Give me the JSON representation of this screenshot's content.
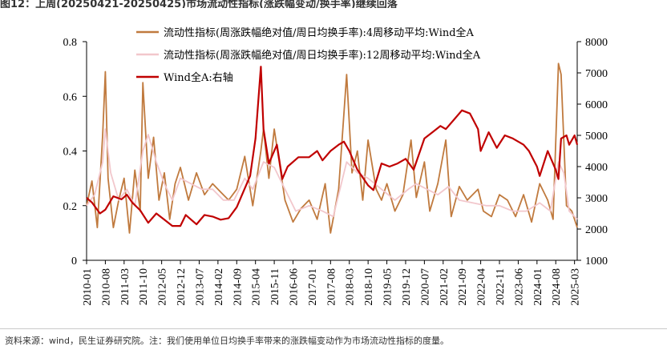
{
  "figure": {
    "title": "图12：上周(20250421-20250425)市场流动性指标(涨跌幅变动/换手率)继续回落",
    "source": "资料来源：wind，民生证券研究院。注：我们使用单位日均换手率带来的涨跌幅变动作为市场流动性指标的度量。"
  },
  "chart_data": {
    "type": "line",
    "legend_position": "top-center",
    "x_ticks": [
      "2010-01",
      "2010-08",
      "2011-03",
      "2011-10",
      "2012-05",
      "2012-12",
      "2013-07",
      "2014-02",
      "2014-09",
      "2015-04",
      "2015-11",
      "2016-06",
      "2017-01",
      "2017-08",
      "2018-03",
      "2018-10",
      "2019-05",
      "2019-12",
      "2020-07",
      "2021-02",
      "2021-09",
      "2022-04",
      "2022-11",
      "2023-06",
      "2024-01",
      "2024-08",
      "2025-03"
    ],
    "x_range": [
      "2010-01",
      "2025-04"
    ],
    "y_left": {
      "range": [
        0,
        0.8
      ],
      "ticks": [
        "0",
        "0.2",
        "0.4",
        "0.6",
        "0.8"
      ]
    },
    "y_right": {
      "range": [
        1000,
        8000
      ],
      "ticks": [
        "1000",
        "2000",
        "3000",
        "4000",
        "5000",
        "6000",
        "7000",
        "8000"
      ]
    },
    "series": [
      {
        "name": "流动性指标(周涨跌幅绝对值/周日均换手率):4周移动平均:Wind全A",
        "axis": "left",
        "color": "#c07a3e",
        "points": [
          [
            "2010-01",
            0.2
          ],
          [
            "2010-03",
            0.29
          ],
          [
            "2010-05",
            0.12
          ],
          [
            "2010-07",
            0.46
          ],
          [
            "2010-08",
            0.69
          ],
          [
            "2010-09",
            0.3
          ],
          [
            "2010-11",
            0.12
          ],
          [
            "2011-01",
            0.22
          ],
          [
            "2011-03",
            0.3
          ],
          [
            "2011-05",
            0.1
          ],
          [
            "2011-07",
            0.33
          ],
          [
            "2011-09",
            0.18
          ],
          [
            "2011-10",
            0.65
          ],
          [
            "2011-12",
            0.3
          ],
          [
            "2012-02",
            0.45
          ],
          [
            "2012-04",
            0.22
          ],
          [
            "2012-06",
            0.32
          ],
          [
            "2012-08",
            0.15
          ],
          [
            "2012-10",
            0.28
          ],
          [
            "2012-12",
            0.34
          ],
          [
            "2013-03",
            0.22
          ],
          [
            "2013-06",
            0.32
          ],
          [
            "2013-09",
            0.24
          ],
          [
            "2013-12",
            0.28
          ],
          [
            "2014-03",
            0.25
          ],
          [
            "2014-06",
            0.22
          ],
          [
            "2014-09",
            0.26
          ],
          [
            "2014-12",
            0.38
          ],
          [
            "2015-03",
            0.2
          ],
          [
            "2015-06",
            0.4
          ],
          [
            "2015-07",
            0.48
          ],
          [
            "2015-09",
            0.3
          ],
          [
            "2015-11",
            0.48
          ],
          [
            "2016-01",
            0.35
          ],
          [
            "2016-03",
            0.22
          ],
          [
            "2016-06",
            0.14
          ],
          [
            "2016-09",
            0.19
          ],
          [
            "2016-12",
            0.22
          ],
          [
            "2017-03",
            0.15
          ],
          [
            "2017-06",
            0.28
          ],
          [
            "2017-08",
            0.1
          ],
          [
            "2017-11",
            0.26
          ],
          [
            "2018-02",
            0.68
          ],
          [
            "2018-04",
            0.32
          ],
          [
            "2018-06",
            0.4
          ],
          [
            "2018-08",
            0.22
          ],
          [
            "2018-10",
            0.44
          ],
          [
            "2019-01",
            0.26
          ],
          [
            "2019-03",
            0.22
          ],
          [
            "2019-05",
            0.28
          ],
          [
            "2019-08",
            0.18
          ],
          [
            "2019-11",
            0.24
          ],
          [
            "2020-02",
            0.44
          ],
          [
            "2020-04",
            0.23
          ],
          [
            "2020-07",
            0.36
          ],
          [
            "2020-09",
            0.18
          ],
          [
            "2020-12",
            0.28
          ],
          [
            "2021-03",
            0.44
          ],
          [
            "2021-05",
            0.16
          ],
          [
            "2021-08",
            0.27
          ],
          [
            "2021-11",
            0.22
          ],
          [
            "2022-03",
            0.26
          ],
          [
            "2022-05",
            0.18
          ],
          [
            "2022-08",
            0.16
          ],
          [
            "2022-11",
            0.24
          ],
          [
            "2023-02",
            0.22
          ],
          [
            "2023-05",
            0.16
          ],
          [
            "2023-08",
            0.24
          ],
          [
            "2023-11",
            0.14
          ],
          [
            "2024-02",
            0.28
          ],
          [
            "2024-05",
            0.22
          ],
          [
            "2024-07",
            0.15
          ],
          [
            "2024-09",
            0.72
          ],
          [
            "2024-10",
            0.68
          ],
          [
            "2024-12",
            0.2
          ],
          [
            "2025-02",
            0.18
          ],
          [
            "2025-04",
            0.12
          ]
        ]
      },
      {
        "name": "流动性指标(周涨跌幅绝对值/周日均换手率):12周移动平均:Wind全A",
        "axis": "left",
        "color": "#f2c7cc",
        "points": [
          [
            "2010-01",
            0.2
          ],
          [
            "2010-04",
            0.24
          ],
          [
            "2010-07",
            0.36
          ],
          [
            "2010-08",
            0.48
          ],
          [
            "2010-10",
            0.32
          ],
          [
            "2011-01",
            0.22
          ],
          [
            "2011-04",
            0.26
          ],
          [
            "2011-07",
            0.2
          ],
          [
            "2011-10",
            0.4
          ],
          [
            "2011-12",
            0.46
          ],
          [
            "2012-03",
            0.36
          ],
          [
            "2012-06",
            0.28
          ],
          [
            "2012-09",
            0.22
          ],
          [
            "2012-12",
            0.3
          ],
          [
            "2013-04",
            0.28
          ],
          [
            "2013-08",
            0.26
          ],
          [
            "2013-12",
            0.26
          ],
          [
            "2014-04",
            0.22
          ],
          [
            "2014-08",
            0.22
          ],
          [
            "2014-12",
            0.3
          ],
          [
            "2015-03",
            0.26
          ],
          [
            "2015-07",
            0.36
          ],
          [
            "2015-11",
            0.34
          ],
          [
            "2016-03",
            0.26
          ],
          [
            "2016-07",
            0.18
          ],
          [
            "2016-12",
            0.2
          ],
          [
            "2017-05",
            0.18
          ],
          [
            "2017-09",
            0.16
          ],
          [
            "2018-02",
            0.36
          ],
          [
            "2018-06",
            0.32
          ],
          [
            "2018-10",
            0.3
          ],
          [
            "2019-03",
            0.26
          ],
          [
            "2019-08",
            0.22
          ],
          [
            "2020-01",
            0.26
          ],
          [
            "2020-04",
            0.28
          ],
          [
            "2020-08",
            0.26
          ],
          [
            "2020-12",
            0.24
          ],
          [
            "2021-04",
            0.27
          ],
          [
            "2021-08",
            0.22
          ],
          [
            "2022-01",
            0.21
          ],
          [
            "2022-06",
            0.2
          ],
          [
            "2022-11",
            0.2
          ],
          [
            "2023-04",
            0.18
          ],
          [
            "2023-09",
            0.18
          ],
          [
            "2024-02",
            0.21
          ],
          [
            "2024-06",
            0.18
          ],
          [
            "2024-09",
            0.36
          ],
          [
            "2024-11",
            0.32
          ],
          [
            "2025-01",
            0.18
          ],
          [
            "2025-04",
            0.15
          ]
        ]
      },
      {
        "name": "Wind全A:右轴",
        "axis": "right",
        "color": "#c00000",
        "points": [
          [
            "2010-01",
            3000
          ],
          [
            "2010-03",
            2850
          ],
          [
            "2010-06",
            2500
          ],
          [
            "2010-08",
            2620
          ],
          [
            "2010-11",
            3050
          ],
          [
            "2011-02",
            2950
          ],
          [
            "2011-04",
            3100
          ],
          [
            "2011-06",
            2850
          ],
          [
            "2011-09",
            2600
          ],
          [
            "2011-12",
            2200
          ],
          [
            "2012-03",
            2500
          ],
          [
            "2012-06",
            2300
          ],
          [
            "2012-09",
            2100
          ],
          [
            "2012-12",
            2100
          ],
          [
            "2013-02",
            2450
          ],
          [
            "2013-06",
            2150
          ],
          [
            "2013-09",
            2450
          ],
          [
            "2013-12",
            2400
          ],
          [
            "2014-03",
            2300
          ],
          [
            "2014-06",
            2350
          ],
          [
            "2014-09",
            2700
          ],
          [
            "2014-12",
            3300
          ],
          [
            "2015-02",
            3700
          ],
          [
            "2015-04",
            4900
          ],
          [
            "2015-06",
            7200
          ],
          [
            "2015-07",
            5200
          ],
          [
            "2015-09",
            4100
          ],
          [
            "2015-12",
            4700
          ],
          [
            "2016-02",
            3600
          ],
          [
            "2016-04",
            4000
          ],
          [
            "2016-08",
            4300
          ],
          [
            "2016-12",
            4300
          ],
          [
            "2017-03",
            4500
          ],
          [
            "2017-05",
            4200
          ],
          [
            "2017-08",
            4500
          ],
          [
            "2017-11",
            4700
          ],
          [
            "2018-01",
            4800
          ],
          [
            "2018-03",
            4500
          ],
          [
            "2018-06",
            3900
          ],
          [
            "2018-10",
            3400
          ],
          [
            "2018-12",
            3250
          ],
          [
            "2019-03",
            4100
          ],
          [
            "2019-06",
            4000
          ],
          [
            "2019-09",
            4100
          ],
          [
            "2019-12",
            4250
          ],
          [
            "2020-03",
            3900
          ],
          [
            "2020-07",
            4900
          ],
          [
            "2020-10",
            5100
          ],
          [
            "2021-01",
            5300
          ],
          [
            "2021-03",
            5200
          ],
          [
            "2021-06",
            5500
          ],
          [
            "2021-09",
            5800
          ],
          [
            "2021-12",
            5700
          ],
          [
            "2022-03",
            5200
          ],
          [
            "2022-04",
            4500
          ],
          [
            "2022-07",
            5100
          ],
          [
            "2022-10",
            4600
          ],
          [
            "2023-01",
            5000
          ],
          [
            "2023-04",
            4900
          ],
          [
            "2023-08",
            4700
          ],
          [
            "2023-10",
            4500
          ],
          [
            "2024-01",
            4000
          ],
          [
            "2024-02",
            3700
          ],
          [
            "2024-05",
            4500
          ],
          [
            "2024-08",
            3900
          ],
          [
            "2024-09",
            3600
          ],
          [
            "2024-10",
            4900
          ],
          [
            "2024-12",
            5000
          ],
          [
            "2025-01",
            4700
          ],
          [
            "2025-03",
            5000
          ],
          [
            "2025-04",
            4700
          ]
        ]
      }
    ]
  }
}
